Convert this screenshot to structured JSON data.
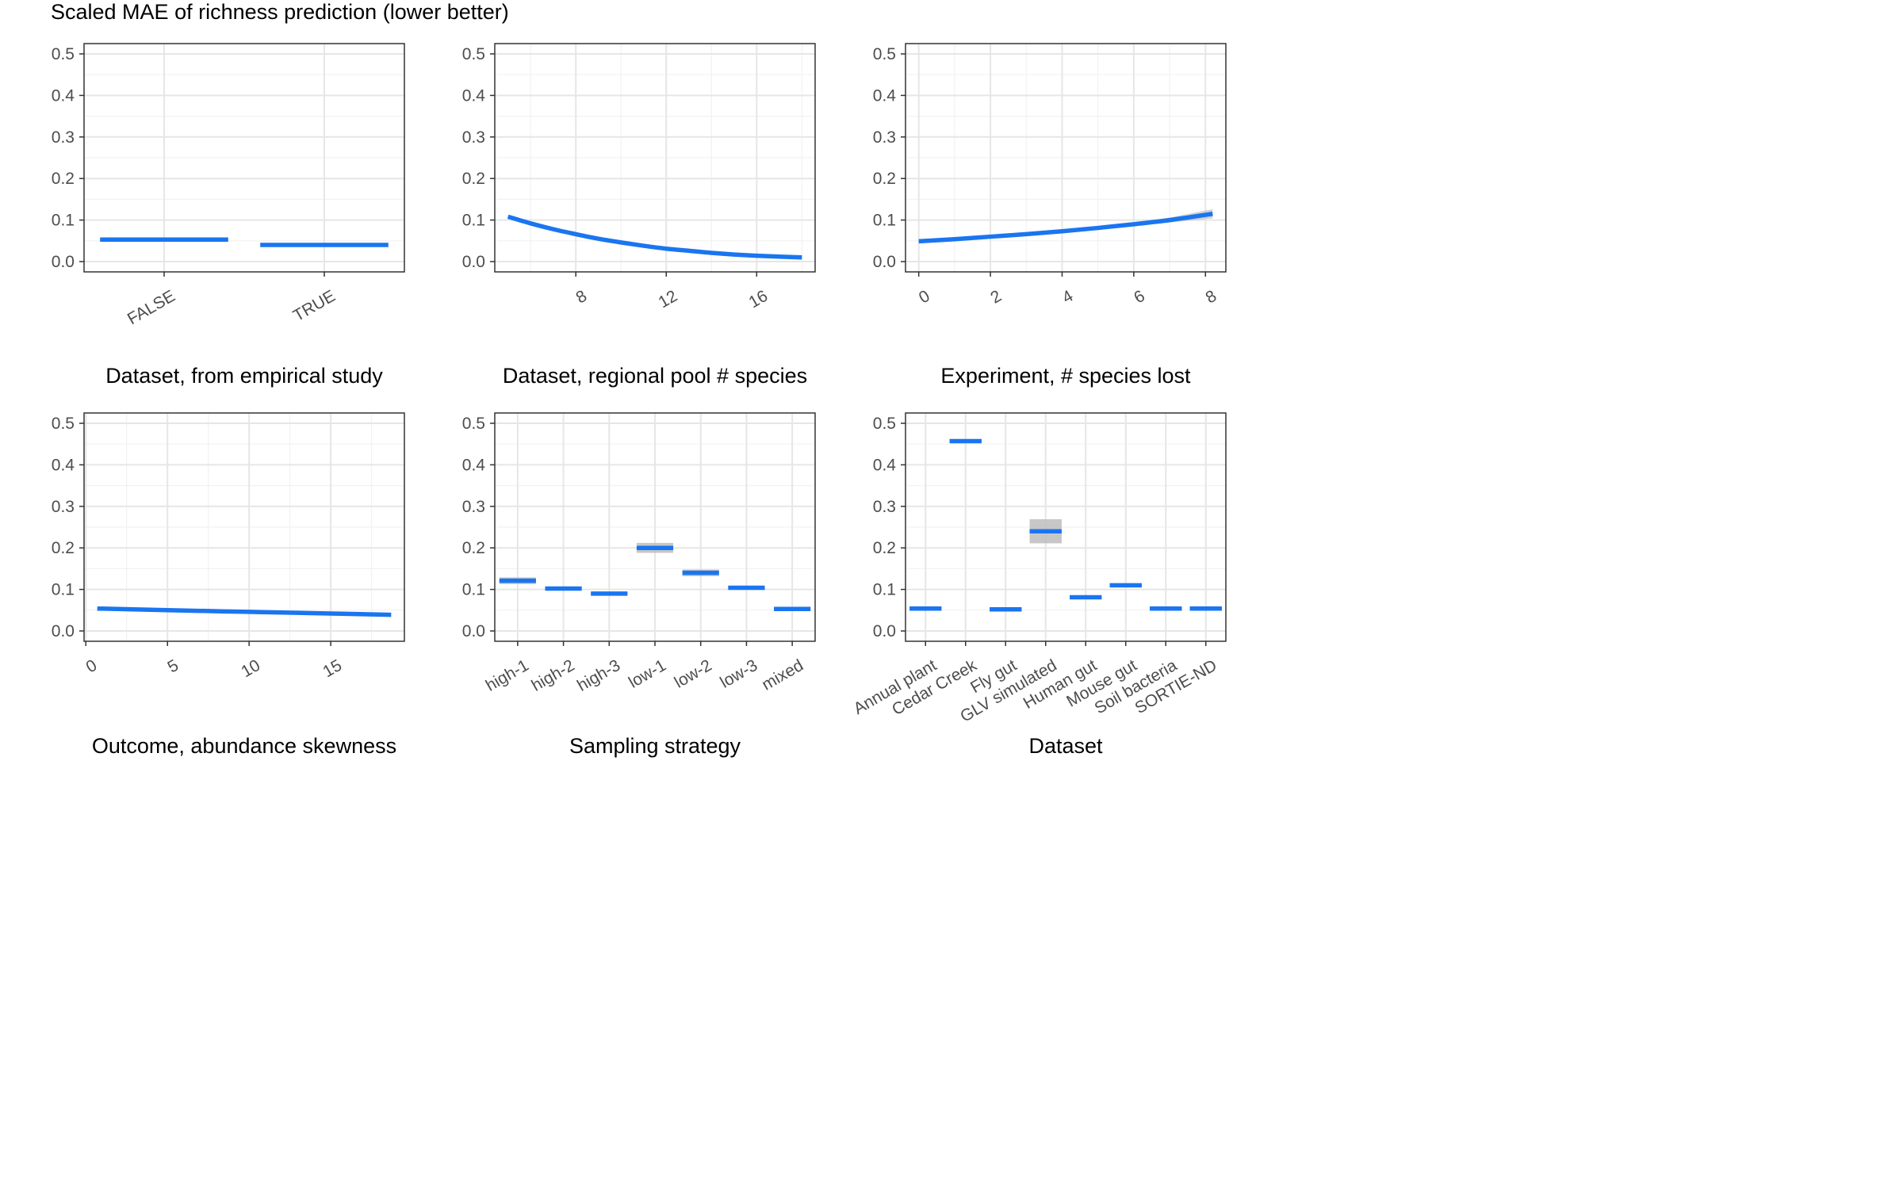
{
  "title": "Scaled MAE of richness prediction (lower better)",
  "colors": {
    "line": "#1a75f0",
    "ribbon": "#bdbdbd",
    "grid_major": "#e6e6e6",
    "grid_minor": "#f2f2f2",
    "panel_border": "#333333",
    "tick_text": "#4d4d4d"
  },
  "chart_data": [
    {
      "type": "bar",
      "xlabel": "Dataset, from empirical study",
      "ylim": [
        0,
        0.5
      ],
      "yticks": [
        0.0,
        0.1,
        0.2,
        0.3,
        0.4,
        0.5
      ],
      "y_tick_labels": [
        "0.0",
        "0.1",
        "0.2",
        "0.3",
        "0.4",
        "0.5"
      ],
      "grid": true,
      "categories": [
        "FALSE",
        "TRUE"
      ],
      "values": [
        0.053,
        0.04
      ],
      "lower": [
        0.052,
        0.039
      ],
      "upper": [
        0.054,
        0.041
      ]
    },
    {
      "type": "line",
      "xlabel": "Dataset, regional pool # species",
      "xlim": [
        5,
        18
      ],
      "ylim": [
        0,
        0.5
      ],
      "xticks": [
        8,
        12,
        16
      ],
      "x_tick_labels": [
        "8",
        "12",
        "16"
      ],
      "yticks": [
        0.0,
        0.1,
        0.2,
        0.3,
        0.4,
        0.5
      ],
      "y_tick_labels": [
        "0.0",
        "0.1",
        "0.2",
        "0.3",
        "0.4",
        "0.5"
      ],
      "grid": true,
      "x": [
        5,
        6,
        7,
        8,
        9,
        10,
        11,
        12,
        13,
        14,
        15,
        16,
        17,
        18
      ],
      "y": [
        0.108,
        0.092,
        0.078,
        0.066,
        0.055,
        0.046,
        0.038,
        0.031,
        0.026,
        0.021,
        0.017,
        0.014,
        0.012,
        0.01
      ],
      "lower": [
        0.105,
        0.09,
        0.076,
        0.064,
        0.054,
        0.045,
        0.037,
        0.031,
        0.025,
        0.02,
        0.016,
        0.013,
        0.011,
        0.009
      ],
      "upper": [
        0.111,
        0.094,
        0.08,
        0.068,
        0.056,
        0.047,
        0.039,
        0.032,
        0.027,
        0.022,
        0.018,
        0.015,
        0.013,
        0.011
      ]
    },
    {
      "type": "line",
      "xlabel": "Experiment, # species lost",
      "xlim": [
        0,
        8.2
      ],
      "ylim": [
        0,
        0.5
      ],
      "xticks": [
        0,
        2,
        4,
        6,
        8
      ],
      "x_tick_labels": [
        "0",
        "2",
        "4",
        "6",
        "8"
      ],
      "yticks": [
        0.0,
        0.1,
        0.2,
        0.3,
        0.4,
        0.5
      ],
      "y_tick_labels": [
        "0.0",
        "0.1",
        "0.2",
        "0.3",
        "0.4",
        "0.5"
      ],
      "grid": true,
      "x": [
        0,
        1,
        2,
        3,
        4,
        5,
        6,
        7,
        8.2
      ],
      "y": [
        0.049,
        0.054,
        0.06,
        0.066,
        0.073,
        0.081,
        0.09,
        0.1,
        0.115
      ],
      "lower": [
        0.047,
        0.052,
        0.058,
        0.064,
        0.071,
        0.078,
        0.086,
        0.094,
        0.104
      ],
      "upper": [
        0.051,
        0.056,
        0.062,
        0.068,
        0.075,
        0.084,
        0.094,
        0.106,
        0.126
      ]
    },
    {
      "type": "line",
      "xlabel": "Outcome, abundance skewness",
      "xlim": [
        0.7,
        18.7
      ],
      "ylim": [
        0,
        0.5
      ],
      "xticks": [
        0,
        5,
        10,
        15
      ],
      "x_tick_labels": [
        "0",
        "5",
        "10",
        "15"
      ],
      "yticks": [
        0.0,
        0.1,
        0.2,
        0.3,
        0.4,
        0.5
      ],
      "y_tick_labels": [
        "0.0",
        "0.1",
        "0.2",
        "0.3",
        "0.4",
        "0.5"
      ],
      "grid": true,
      "x": [
        0.7,
        5,
        10,
        15,
        18.7
      ],
      "y": [
        0.054,
        0.05,
        0.046,
        0.042,
        0.039
      ],
      "lower": [
        0.052,
        0.049,
        0.045,
        0.041,
        0.037
      ],
      "upper": [
        0.056,
        0.051,
        0.047,
        0.043,
        0.041
      ]
    },
    {
      "type": "bar",
      "xlabel": "Sampling strategy",
      "ylim": [
        0,
        0.5
      ],
      "yticks": [
        0.0,
        0.1,
        0.2,
        0.3,
        0.4,
        0.5
      ],
      "y_tick_labels": [
        "0.0",
        "0.1",
        "0.2",
        "0.3",
        "0.4",
        "0.5"
      ],
      "grid": true,
      "categories": [
        "high-1",
        "high-2",
        "high-3",
        "low-1",
        "low-2",
        "low-3",
        "mixed"
      ],
      "values": [
        0.121,
        0.102,
        0.09,
        0.2,
        0.14,
        0.104,
        0.053
      ],
      "lower": [
        0.113,
        0.098,
        0.086,
        0.188,
        0.132,
        0.1,
        0.05
      ],
      "upper": [
        0.129,
        0.106,
        0.094,
        0.212,
        0.148,
        0.108,
        0.056
      ]
    },
    {
      "type": "bar",
      "xlabel": "Dataset",
      "ylim": [
        0,
        0.5
      ],
      "yticks": [
        0.0,
        0.1,
        0.2,
        0.3,
        0.4,
        0.5
      ],
      "y_tick_labels": [
        "0.0",
        "0.1",
        "0.2",
        "0.3",
        "0.4",
        "0.5"
      ],
      "grid": true,
      "categories": [
        "Annual plant",
        "Cedar Creek",
        "Fly gut",
        "GLV simulated",
        "Human gut",
        "Mouse gut",
        "Soil bacteria",
        "SORTIE-ND"
      ],
      "values": [
        0.054,
        0.457,
        0.052,
        0.24,
        0.081,
        0.11,
        0.054,
        0.054
      ],
      "lower": [
        0.052,
        0.455,
        0.049,
        0.211,
        0.078,
        0.107,
        0.052,
        0.052
      ],
      "upper": [
        0.056,
        0.459,
        0.055,
        0.269,
        0.084,
        0.113,
        0.056,
        0.056
      ]
    }
  ]
}
